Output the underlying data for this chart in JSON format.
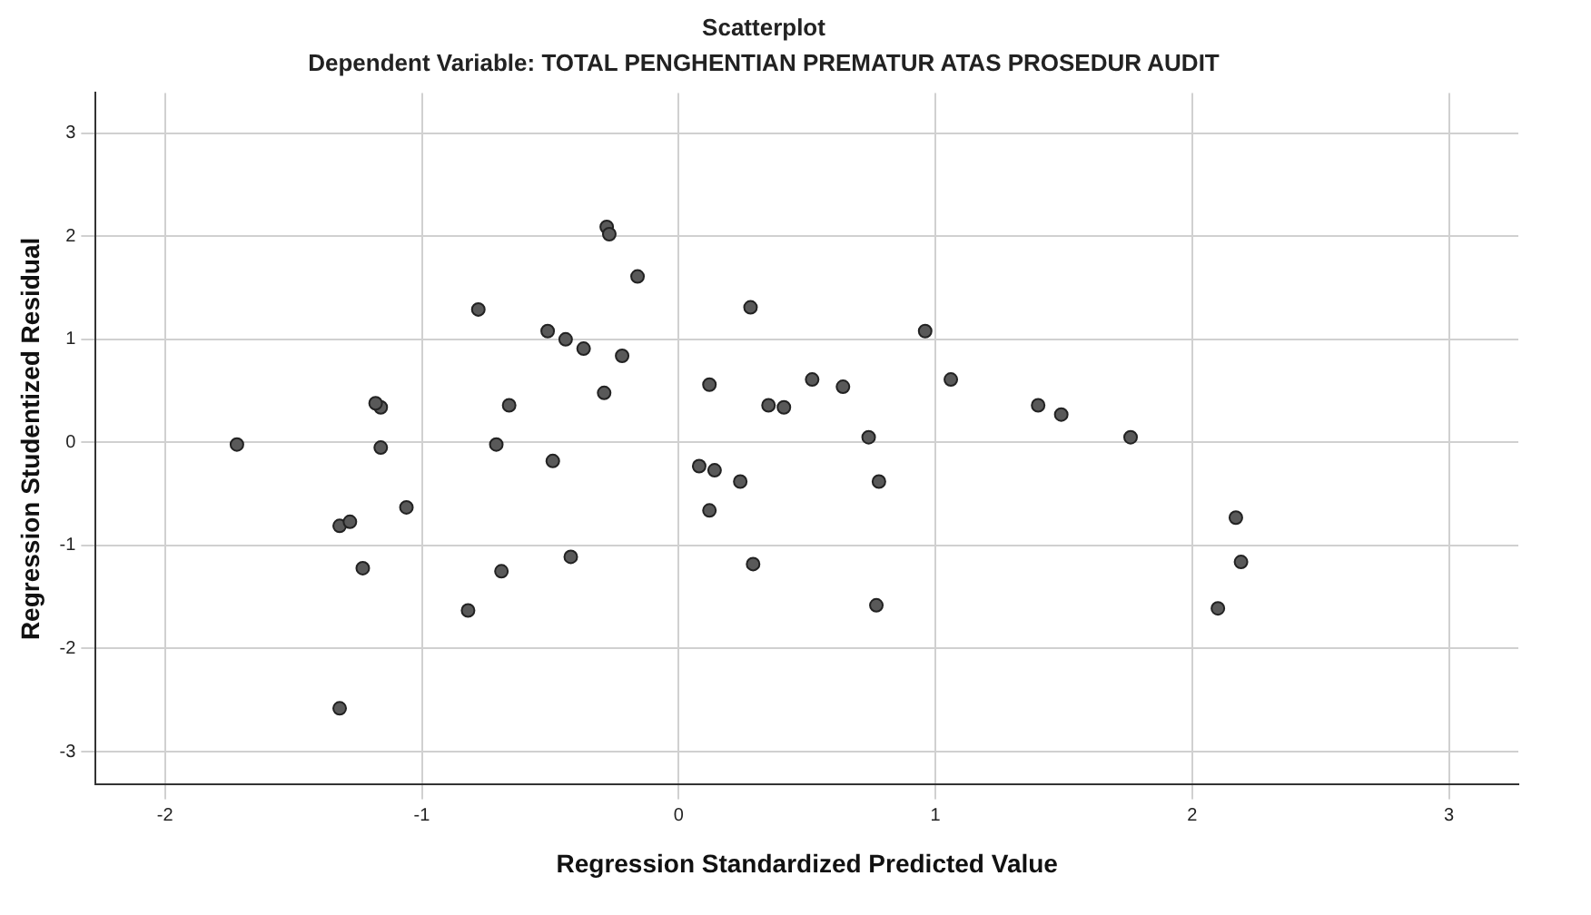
{
  "chart_data": {
    "type": "scatter",
    "title": "Scatterplot",
    "subtitle": "Dependent Variable: TOTAL PENGHENTIAN PREMATUR ATAS PROSEDUR AUDIT",
    "xlabel": "Regression Standardized Predicted Value",
    "ylabel": "Regression Studentized Residual",
    "x": [
      -1.72,
      -1.32,
      -1.28,
      -1.32,
      -1.23,
      -1.16,
      -1.18,
      -1.16,
      -1.06,
      -0.78,
      -0.82,
      -0.71,
      -0.69,
      -0.66,
      -0.51,
      -0.49,
      -0.44,
      -0.42,
      -0.37,
      -0.29,
      -0.28,
      -0.27,
      -0.22,
      -0.16,
      0.08,
      0.12,
      0.14,
      0.12,
      0.24,
      0.28,
      0.29,
      0.35,
      0.41,
      0.52,
      0.64,
      0.74,
      0.78,
      0.77,
      0.96,
      1.06,
      1.4,
      1.49,
      1.76,
      2.1,
      2.17,
      2.19
    ],
    "values": [
      -0.02,
      -0.81,
      -0.77,
      -2.58,
      -1.22,
      0.34,
      0.38,
      -0.05,
      -0.63,
      1.29,
      -1.63,
      -0.02,
      -1.25,
      0.36,
      1.08,
      -0.18,
      1.0,
      -1.11,
      0.91,
      0.48,
      2.09,
      2.02,
      0.84,
      1.61,
      -0.23,
      0.56,
      -0.27,
      -0.66,
      -0.38,
      1.31,
      -1.18,
      0.36,
      0.34,
      0.61,
      0.54,
      0.05,
      -0.38,
      -1.58,
      1.08,
      0.61,
      0.36,
      0.27,
      0.05,
      -1.61,
      -0.73,
      -1.16
    ],
    "color": "#595959",
    "marker": "circle",
    "grid": true,
    "xlim": [
      -2.27,
      3.27
    ],
    "xticks": [
      -2,
      -1,
      0,
      1,
      2,
      3
    ],
    "ylim": [
      -3.32,
      3.39
    ],
    "yticks": [
      -3,
      -2,
      -1,
      0,
      1,
      2,
      3
    ]
  }
}
